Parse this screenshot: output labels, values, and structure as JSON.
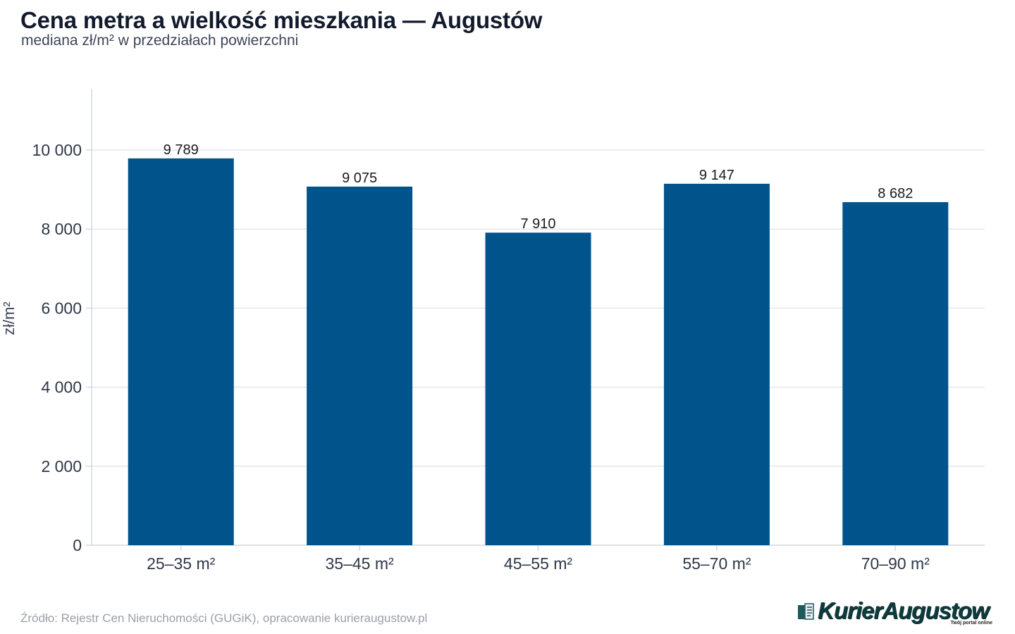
{
  "title": "Cena metra a wielkość mieszkania — Augustów",
  "subtitle": "mediana zł/m² w przedziałach powierzchni",
  "source": "Źródło: Rejestr Cen Nieruchomości (GUGiK), opracowanie kurieraugustow.pl",
  "logo": {
    "name": "KurierAugustow",
    "tagline": "Twój portal online",
    "icon": "newspaper-icon"
  },
  "colors": {
    "bar": "#00548c",
    "grid": "#e4e6ea",
    "axis": "#d5d8dc",
    "tick_text": "#2e3748",
    "label_text": "#1a1a1a"
  },
  "chart_data": {
    "type": "bar",
    "title": "Cena metra a wielkość mieszkania — Augustów",
    "subtitle": "mediana zł/m² w przedziałach powierzchni",
    "xlabel": "",
    "ylabel": "zł/m²",
    "categories": [
      "25–35 m²",
      "35–45 m²",
      "45–55 m²",
      "55–70 m²",
      "70–90 m²"
    ],
    "values": [
      9789,
      9075,
      7910,
      9147,
      8682
    ],
    "value_labels": [
      "9 789",
      "9 075",
      "7 910",
      "9 147",
      "8 682"
    ],
    "ylim": [
      0,
      11500
    ],
    "yticks": [
      0,
      2000,
      4000,
      6000,
      8000,
      10000
    ],
    "ytick_labels": [
      "0",
      "2 000",
      "4 000",
      "6 000",
      "8 000",
      "10 000"
    ],
    "grid": true,
    "legend": "none"
  }
}
